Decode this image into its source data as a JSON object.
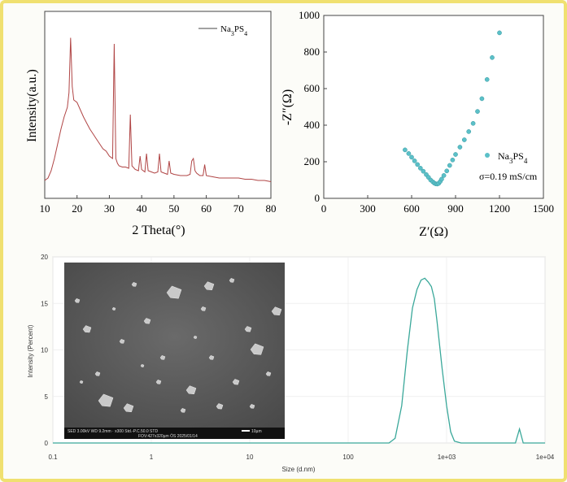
{
  "chart_data": [
    {
      "type": "line",
      "title": "",
      "xlabel": "2 Theta(°)",
      "ylabel": "Intensity(a.u.)",
      "xlim": [
        10,
        80
      ],
      "x_ticks": [
        "10",
        "20",
        "30",
        "40",
        "50",
        "60",
        "70",
        "80"
      ],
      "legend": {
        "label_main": "Na",
        "sub1": "3",
        "mid": "PS",
        "sub2": "4",
        "placement": "top-right"
      },
      "color": "#b04040",
      "series": [
        {
          "x": [
            10,
            11,
            12,
            13,
            14,
            15,
            16,
            17,
            17.5,
            18,
            18.5,
            19,
            20,
            21,
            22,
            23,
            24,
            25,
            26,
            27,
            28,
            29,
            30,
            31,
            31.5,
            32,
            32.5,
            33,
            34,
            35,
            36,
            36.5,
            37,
            38,
            39,
            39.5,
            40,
            41,
            41.5,
            42,
            43,
            44,
            45,
            45.5,
            46,
            47,
            48,
            48.5,
            49,
            50,
            52,
            54,
            55,
            55.5,
            56,
            56.5,
            57,
            58,
            59,
            59.5,
            60,
            62,
            64,
            66,
            68,
            70,
            72,
            74,
            76,
            78,
            80
          ],
          "y": [
            8,
            10,
            16,
            26,
            38,
            50,
            60,
            68,
            80,
            125,
            85,
            74,
            72,
            66,
            60,
            55,
            50,
            46,
            42,
            38,
            34,
            32,
            28,
            26,
            120,
            26,
            22,
            20,
            19,
            19,
            18,
            62,
            20,
            17,
            16,
            28,
            17,
            15,
            30,
            16,
            15,
            14,
            15,
            30,
            15,
            14,
            13,
            24,
            14,
            13,
            12,
            12,
            13,
            24,
            26,
            16,
            14,
            12,
            12,
            21,
            12,
            11,
            10,
            10,
            10,
            10,
            9,
            9,
            8,
            8,
            7
          ]
        }
      ]
    },
    {
      "type": "scatter",
      "title": "",
      "xlabel": "Z′(Ω)",
      "ylabel": "-Z″(Ω)",
      "xlim": [
        0,
        1500
      ],
      "ylim": [
        0,
        1000
      ],
      "x_ticks": [
        "0",
        "300",
        "600",
        "900",
        "1200",
        "1500"
      ],
      "y_ticks": [
        "0",
        "200",
        "400",
        "600",
        "800",
        "1000"
      ],
      "legend": {
        "label_main": "Na",
        "sub1": "3",
        "mid": "PS",
        "sub2": "4",
        "placement": "right"
      },
      "annotation": "σ=0.19 mS/cm",
      "color": "#5bc0c8",
      "series": [
        {
          "x": [
            555,
            580,
            600,
            620,
            640,
            660,
            680,
            700,
            715,
            730,
            745,
            755,
            765,
            775,
            785,
            795,
            805,
            820,
            840,
            860,
            880,
            900,
            930,
            960,
            990,
            1020,
            1050,
            1080,
            1115,
            1150,
            1200
          ],
          "y": [
            265,
            245,
            225,
            205,
            185,
            165,
            148,
            130,
            115,
            100,
            90,
            83,
            79,
            78,
            82,
            92,
            105,
            125,
            150,
            180,
            210,
            240,
            280,
            320,
            365,
            410,
            475,
            545,
            650,
            770,
            905
          ]
        }
      ]
    },
    {
      "type": "line",
      "title": "",
      "xlabel": "Size (d.nm)",
      "ylabel": "Intensity (Percent)",
      "xscale": "log",
      "xlim": [
        0.1,
        10000
      ],
      "ylim": [
        0,
        20
      ],
      "x_ticks": [
        "0.1",
        "1",
        "10",
        "100",
        "1e+03",
        "1e+04"
      ],
      "y_ticks": [
        "0",
        "5",
        "10",
        "15",
        "20"
      ],
      "color": "#3aa89a",
      "series": [
        {
          "x": [
            0.1,
            1,
            10,
            100,
            260,
            300,
            350,
            400,
            450,
            500,
            550,
            600,
            650,
            700,
            750,
            800,
            900,
            1000,
            1100,
            1200,
            1400,
            2000,
            3000,
            4000,
            5000,
            5500,
            6000,
            6500,
            7000,
            10000
          ],
          "y": [
            0,
            0,
            0,
            0,
            0,
            0.5,
            4,
            10,
            14.5,
            16.5,
            17.5,
            17.7,
            17.3,
            16.8,
            15.5,
            13,
            8,
            4,
            1.2,
            0.2,
            0,
            0,
            0,
            0,
            0,
            1.5,
            0,
            0,
            0,
            0
          ]
        }
      ]
    }
  ],
  "sem_image": {
    "footer_text": "SED   3.00kV  WD 9.2mm  · x300   Std.-P.C.50.0   STD",
    "footer_text2": "FOV:427x320µm   ÒS   2025/01/14",
    "scale_label": "10µm"
  }
}
